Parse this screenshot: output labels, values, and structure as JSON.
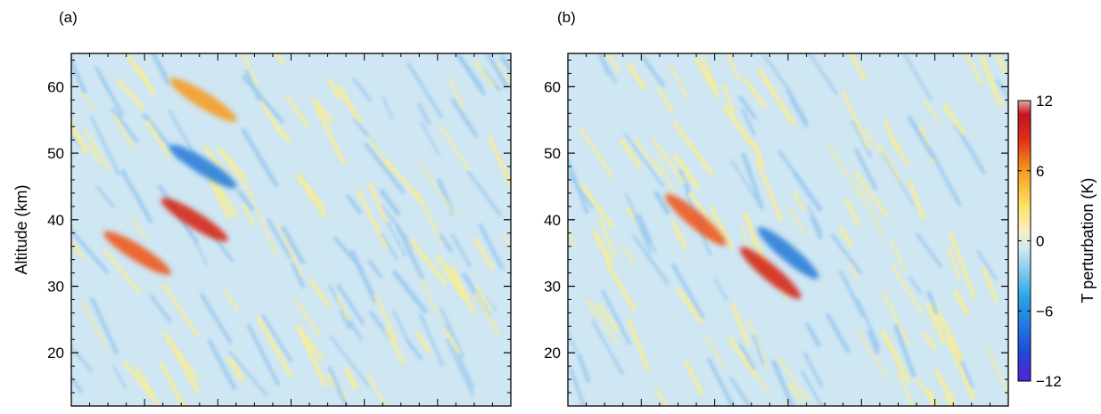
{
  "chart_data": [
    {
      "type": "heatmap",
      "panel_label": "(a)",
      "ylabel": "Altitude (km)",
      "yticks": [
        "60",
        "50",
        "40",
        "30",
        "20"
      ],
      "ytick_values": [
        60,
        50,
        40,
        30,
        20
      ],
      "ylim": [
        12,
        65
      ],
      "xticklabels": false,
      "features": [
        {
          "kind": "warm",
          "altitude_km": 40,
          "value_K": 10
        },
        {
          "kind": "warm",
          "altitude_km": 35,
          "value_K": 9
        },
        {
          "kind": "cold",
          "altitude_km": 48,
          "value_K": -7
        },
        {
          "kind": "warm",
          "altitude_km": 58,
          "value_K": 7
        }
      ]
    },
    {
      "type": "heatmap",
      "panel_label": "(b)",
      "yticks": [
        "60",
        "50",
        "40",
        "30",
        "20"
      ],
      "ytick_values": [
        60,
        50,
        40,
        30,
        20
      ],
      "ylim": [
        12,
        65
      ],
      "xticklabels": false,
      "features": [
        {
          "kind": "warm",
          "altitude_km": 32,
          "value_K": 11
        },
        {
          "kind": "warm",
          "altitude_km": 40,
          "value_K": 8
        },
        {
          "kind": "cold",
          "altitude_km": 35,
          "value_K": -8
        }
      ]
    }
  ],
  "colorbar": {
    "label": "T perturbation (K)",
    "ticks": [
      "12",
      "6",
      "0",
      "−6",
      "−12"
    ],
    "tick_values": [
      12,
      6,
      0,
      -6,
      -12
    ],
    "range": [
      -12,
      12
    ],
    "colors": [
      "#5a1fd6",
      "#1f49d8",
      "#29a6e6",
      "#cfe6f2",
      "#f3f0c8",
      "#fde56a",
      "#f5a422",
      "#e23016",
      "#c01420",
      "#e8a7a0"
    ]
  }
}
